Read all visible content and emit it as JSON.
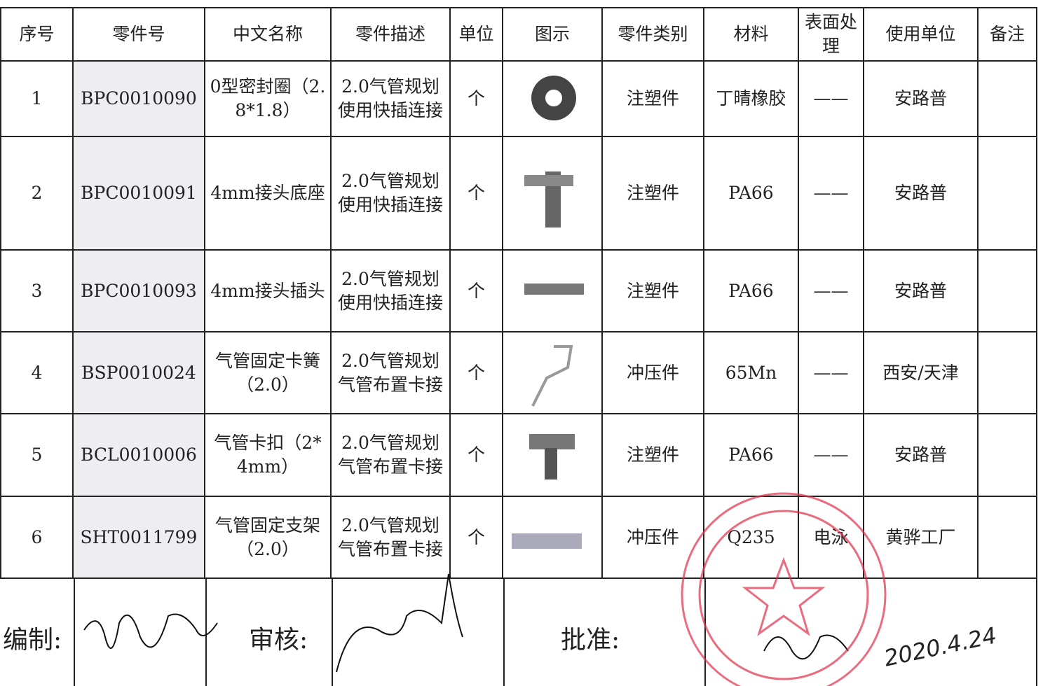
{
  "table": {
    "headers": [
      "序号",
      "零件号",
      "中文名称",
      "零件描述",
      "单位",
      "图示",
      "零件类别",
      "材料",
      "表面处理",
      "使用单位",
      "备注"
    ],
    "rows": [
      {
        "no": "1",
        "part_no": "BPC0010090",
        "name": "0型密封圈（2.8*1.8）",
        "desc": "2.0气管规划使用快插连接",
        "unit": "个",
        "category": "注塑件",
        "material": "丁晴橡胶",
        "surface": "——",
        "user": "安路普"
      },
      {
        "no": "2",
        "part_no": "BPC0010091",
        "name": "4mm接头底座",
        "desc": "2.0气管规划使用快插连接",
        "unit": "个",
        "category": "注塑件",
        "material": "PA66",
        "surface": "——",
        "user": "安路普"
      },
      {
        "no": "3",
        "part_no": "BPC0010093",
        "name": "4mm接头插头",
        "desc": "2.0气管规划使用快插连接",
        "unit": "个",
        "category": "注塑件",
        "material": "PA66",
        "surface": "——",
        "user": "安路普"
      },
      {
        "no": "4",
        "part_no": "BSP0010024",
        "name": "气管固定卡簧（2.0）",
        "desc": "2.0气管规划气管布置卡接",
        "unit": "个",
        "category": "冲压件",
        "material": "65Mn",
        "surface": "——",
        "user": "西安/天津"
      },
      {
        "no": "5",
        "part_no": "BCL0010006",
        "name": "气管卡扣（2*4mm）",
        "desc": "2.0气管规划气管布置卡接",
        "unit": "个",
        "category": "注塑件",
        "material": "PA66",
        "surface": "——",
        "user": "安路普"
      },
      {
        "no": "6",
        "part_no": "SHT0011799",
        "name": "气管固定支架（2.0）",
        "desc": "2.0气管规划气管布置卡接",
        "unit": "个",
        "category": "冲压件",
        "material": "Q235",
        "surface": "电泳",
        "user": "黄骅工厂"
      }
    ]
  },
  "footer": {
    "prepared": "编制:",
    "reviewed": "审核:",
    "approved": "批准:",
    "date": "2020.4.24"
  }
}
